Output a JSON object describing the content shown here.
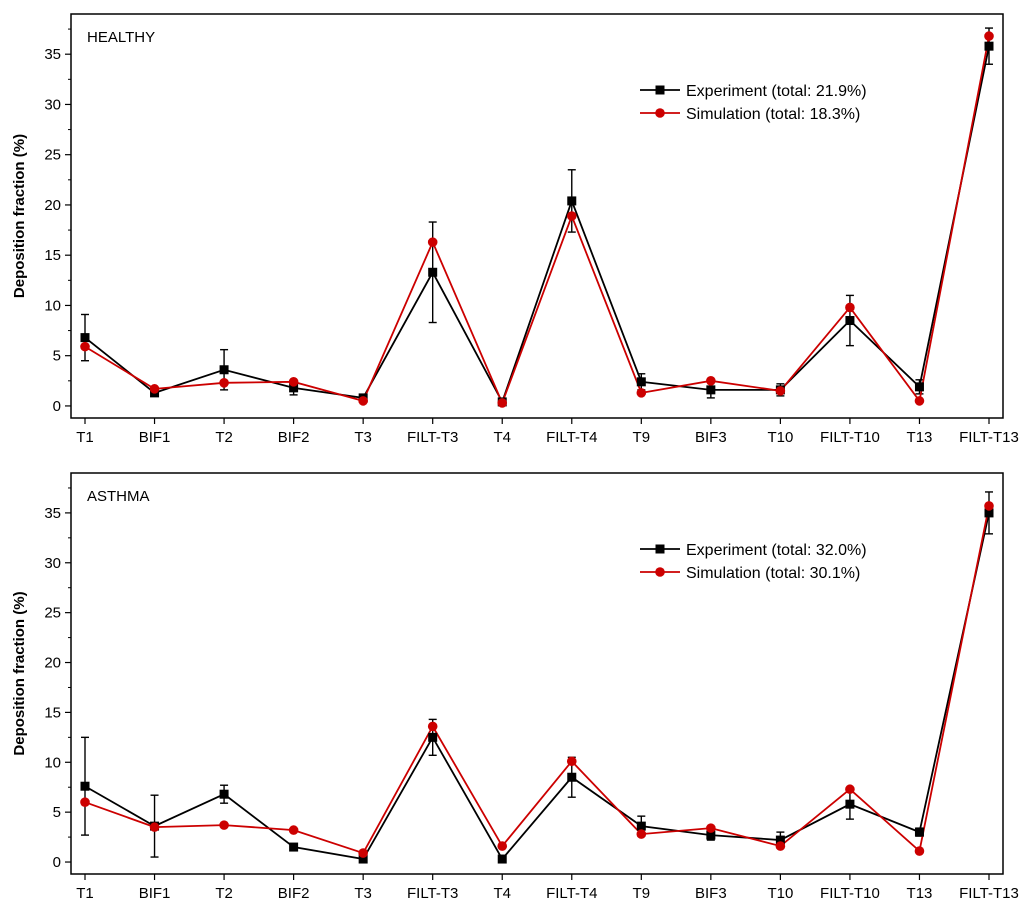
{
  "chart_data": [
    {
      "type": "line",
      "title": "",
      "panel_label": "HEALTHY",
      "xlabel": "",
      "ylabel": "Deposition fraction (%)",
      "ylim": [
        -1.2,
        39
      ],
      "yticks": [
        0,
        5,
        10,
        15,
        20,
        25,
        30,
        35
      ],
      "categories": [
        "T1",
        "BIF1",
        "T2",
        "BIF2",
        "T3",
        "FILT-T3",
        "T4",
        "FILT-T4",
        "T9",
        "BIF3",
        "T10",
        "FILT-T10",
        "T13",
        "FILT-T13"
      ],
      "legend_position": "top-right",
      "grid": false,
      "series": [
        {
          "name": "Experiment (total: 21.9%)",
          "color": "#000000",
          "marker": "square",
          "values": [
            6.8,
            1.3,
            3.6,
            1.8,
            0.8,
            13.3,
            0.4,
            20.4,
            2.4,
            1.6,
            1.6,
            8.5,
            1.9,
            35.8
          ],
          "errors": [
            2.3,
            0.3,
            2.0,
            0.7,
            0.2,
            5.0,
            0.2,
            3.1,
            0.8,
            0.8,
            0.6,
            2.5,
            0.7,
            1.8
          ]
        },
        {
          "name": "Simulation  (total: 18.3%)",
          "color": "#cc0000",
          "marker": "circle",
          "values": [
            5.9,
            1.7,
            2.3,
            2.4,
            0.5,
            16.3,
            0.3,
            18.9,
            1.3,
            2.5,
            1.5,
            9.8,
            0.5,
            36.8
          ]
        }
      ]
    },
    {
      "type": "line",
      "title": "",
      "panel_label": "ASTHMA",
      "xlabel": "",
      "ylabel": "Deposition fraction (%)",
      "ylim": [
        -1.2,
        39
      ],
      "yticks": [
        0,
        5,
        10,
        15,
        20,
        25,
        30,
        35
      ],
      "categories": [
        "T1",
        "BIF1",
        "T2",
        "BIF2",
        "T3",
        "FILT-T3",
        "T4",
        "FILT-T4",
        "T9",
        "BIF3",
        "T10",
        "FILT-T10",
        "T13",
        "FILT-T13"
      ],
      "legend_position": "top-right",
      "grid": false,
      "series": [
        {
          "name": "Experiment (total: 32.0%)",
          "color": "#000000",
          "marker": "square",
          "values": [
            7.6,
            3.6,
            6.8,
            1.5,
            0.3,
            12.5,
            0.3,
            8.5,
            3.6,
            2.7,
            2.2,
            5.8,
            3.0,
            35.0
          ],
          "errors": [
            4.9,
            3.1,
            0.9,
            0.2,
            0.1,
            1.8,
            0.2,
            2.0,
            1.0,
            0.5,
            0.8,
            1.5,
            0.4,
            2.1
          ]
        },
        {
          "name": "Simulation  (total: 30.1%)",
          "color": "#cc0000",
          "marker": "circle",
          "values": [
            6.0,
            3.5,
            3.7,
            3.2,
            0.9,
            13.6,
            1.6,
            10.1,
            2.8,
            3.4,
            1.6,
            7.3,
            1.1,
            35.7
          ]
        }
      ]
    }
  ]
}
